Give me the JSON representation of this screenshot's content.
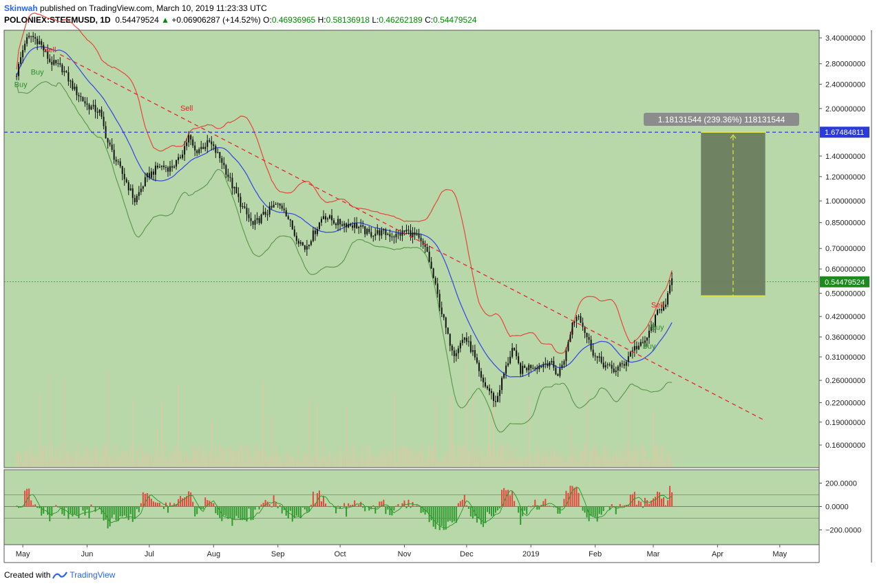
{
  "header": {
    "author": "Skinwah",
    "published_text": "published on TradingView.com, March 10, 2019 11:23:33 UTC",
    "symbol": "POLONIEX:STEEMUSD, 1D",
    "last_price": "0.54479524",
    "change": "+0.06906287 (+14.52%)",
    "open_label": "O:",
    "open": "0.46936965",
    "high_label": "H:",
    "high": "0.58136918",
    "low_label": "L:",
    "low": "0.46262189",
    "close_label": "C:",
    "close": "0.54479524"
  },
  "footer": {
    "created_with": "Created with",
    "brand": "TradingView"
  },
  "colors": {
    "background": "#b8d8a9",
    "border": "#555555",
    "candle": "#111111",
    "upper_band": "#e8453c",
    "basis": "#3b4de3",
    "lower_band": "#5f9a4f",
    "trendline": "#e8252a",
    "hline": "#2a3bd9",
    "target_box": "#6a7e5e",
    "target_edge": "#e3e84a",
    "osc_positive": "#e8453c",
    "osc_negative": "#2e9a2e",
    "last_price_tag": "#1d8a1d",
    "hline_tag": "#2a3bd9"
  },
  "chart_data": {
    "type": "candlestick",
    "scale": "log",
    "ylim": [
      0.135,
      3.6
    ],
    "x_months": [
      "May",
      "Jun",
      "Jul",
      "Aug",
      "Sep",
      "Oct",
      "Nov",
      "Dec",
      "2019",
      "Feb",
      "Mar",
      "Apr",
      "May"
    ],
    "y_ticks": [
      "3.40000000",
      "2.80000000",
      "2.40000000",
      "2.00000000",
      "1.40000000",
      "1.20000000",
      "1.00000000",
      "0.85000000",
      "0.70000000",
      "0.60000000",
      "0.50000000",
      "0.42000000",
      "0.36000000",
      "0.31000000",
      "0.26000000",
      "0.22000000",
      "0.19000000",
      "0.16000000"
    ],
    "last_price_tag": "0.54479524",
    "hline_value": 1.67484811,
    "hline_tag": "1.67484811",
    "measure_label": "1.18131544 (239.36%) 118131544",
    "target_box": {
      "from_price": 0.49,
      "to_price": 1.67484811,
      "from_date": "2019-03-24",
      "to_date": "2019-04-24"
    },
    "trendline": [
      {
        "date": "2018-05-19",
        "price": 3.0
      },
      {
        "date": "2019-04-24",
        "price": 0.192
      }
    ],
    "price_path": [
      [
        "2018-04-28",
        2.6
      ],
      [
        "2018-05-02",
        3.3
      ],
      [
        "2018-05-05",
        3.45
      ],
      [
        "2018-05-09",
        3.3
      ],
      [
        "2018-05-14",
        2.85
      ],
      [
        "2018-05-20",
        2.7
      ],
      [
        "2018-05-26",
        2.3
      ],
      [
        "2018-06-01",
        2.05
      ],
      [
        "2018-06-07",
        1.95
      ],
      [
        "2018-06-11",
        1.55
      ],
      [
        "2018-06-15",
        1.35
      ],
      [
        "2018-06-20",
        1.15
      ],
      [
        "2018-06-24",
        1.0
      ],
      [
        "2018-06-30",
        1.2
      ],
      [
        "2018-07-06",
        1.3
      ],
      [
        "2018-07-11",
        1.28
      ],
      [
        "2018-07-15",
        1.35
      ],
      [
        "2018-07-20",
        1.62
      ],
      [
        "2018-07-23",
        1.45
      ],
      [
        "2018-07-30",
        1.55
      ],
      [
        "2018-08-05",
        1.35
      ],
      [
        "2018-08-10",
        1.12
      ],
      [
        "2018-08-15",
        0.95
      ],
      [
        "2018-08-20",
        0.83
      ],
      [
        "2018-08-25",
        0.9
      ],
      [
        "2018-08-31",
        0.97
      ],
      [
        "2018-09-04",
        0.95
      ],
      [
        "2018-09-09",
        0.78
      ],
      [
        "2018-09-14",
        0.7
      ],
      [
        "2018-09-19",
        0.8
      ],
      [
        "2018-09-23",
        0.9
      ],
      [
        "2018-09-29",
        0.85
      ],
      [
        "2018-10-05",
        0.84
      ],
      [
        "2018-10-09",
        0.83
      ],
      [
        "2018-10-15",
        0.78
      ],
      [
        "2018-10-20",
        0.79
      ],
      [
        "2018-10-28",
        0.77
      ],
      [
        "2018-11-02",
        0.8
      ],
      [
        "2018-11-07",
        0.76
      ],
      [
        "2018-11-12",
        0.68
      ],
      [
        "2018-11-15",
        0.56
      ],
      [
        "2018-11-18",
        0.46
      ],
      [
        "2018-11-22",
        0.36
      ],
      [
        "2018-11-25",
        0.32
      ],
      [
        "2018-11-30",
        0.36
      ],
      [
        "2018-12-04",
        0.32
      ],
      [
        "2018-12-08",
        0.26
      ],
      [
        "2018-12-12",
        0.24
      ],
      [
        "2018-12-15",
        0.22
      ],
      [
        "2018-12-18",
        0.26
      ],
      [
        "2018-12-23",
        0.33
      ],
      [
        "2018-12-27",
        0.28
      ],
      [
        "2019-01-01",
        0.29
      ],
      [
        "2019-01-05",
        0.29
      ],
      [
        "2019-01-10",
        0.3
      ],
      [
        "2019-01-14",
        0.27
      ],
      [
        "2019-01-18",
        0.32
      ],
      [
        "2019-01-21",
        0.4
      ],
      [
        "2019-01-24",
        0.43
      ],
      [
        "2019-01-28",
        0.36
      ],
      [
        "2019-02-01",
        0.31
      ],
      [
        "2019-02-06",
        0.29
      ],
      [
        "2019-02-10",
        0.28
      ],
      [
        "2019-02-15",
        0.295
      ],
      [
        "2019-02-19",
        0.33
      ],
      [
        "2019-02-24",
        0.34
      ],
      [
        "2019-02-27",
        0.37
      ],
      [
        "2019-03-03",
        0.43
      ],
      [
        "2019-03-07",
        0.47
      ],
      [
        "2019-03-10",
        0.545
      ]
    ],
    "markers": [
      {
        "date": "2018-05-14",
        "price": 3.05,
        "label": "Sell",
        "kind": "sell"
      },
      {
        "date": "2018-05-08",
        "price": 2.58,
        "label": "Buy",
        "kind": "buy"
      },
      {
        "date": "2018-04-30",
        "price": 2.35,
        "label": "Buy",
        "kind": "buy"
      },
      {
        "date": "2018-07-19",
        "price": 1.97,
        "label": "Sell",
        "kind": "sell"
      },
      {
        "date": "2019-03-03",
        "price": 0.45,
        "label": "Sell",
        "kind": "sell"
      },
      {
        "date": "2019-03-03",
        "price": 0.38,
        "label": "Buy",
        "kind": "buy"
      },
      {
        "date": "2019-02-27",
        "price": 0.33,
        "label": "Buy",
        "kind": "buy"
      }
    ],
    "osc_ticks": [
      "200.0000",
      "0.0000",
      "−200.0000"
    ]
  }
}
